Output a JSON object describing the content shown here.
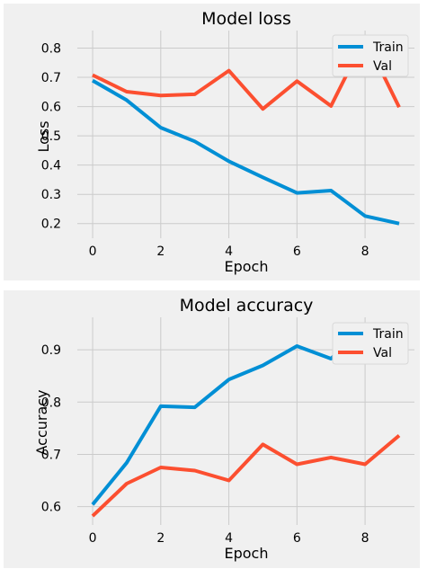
{
  "chart_data": [
    {
      "type": "line",
      "title": "Model loss",
      "xlabel": "Epoch",
      "ylabel": "Loss",
      "x": [
        0,
        1,
        2,
        3,
        4,
        5,
        6,
        7,
        8,
        9
      ],
      "xlim": [
        -0.45,
        9.45
      ],
      "ylim": [
        0.15,
        0.86
      ],
      "xticks": [
        0,
        2,
        4,
        6,
        8
      ],
      "yticks": [
        0.2,
        0.3,
        0.4,
        0.5,
        0.6,
        0.7,
        0.8
      ],
      "series": [
        {
          "name": "Train",
          "color": "#008fd5",
          "values": [
            0.689,
            0.622,
            0.528,
            0.481,
            0.413,
            0.358,
            0.305,
            0.313,
            0.226,
            0.2
          ]
        },
        {
          "name": "Val",
          "color": "#fc4f30",
          "values": [
            0.708,
            0.651,
            0.638,
            0.642,
            0.723,
            0.592,
            0.687,
            0.602,
            0.835,
            0.598
          ]
        }
      ],
      "grid": true,
      "legend": "top-right"
    },
    {
      "type": "line",
      "title": "Model accuracy",
      "xlabel": "Epoch",
      "ylabel": "Accuracy",
      "x": [
        0,
        1,
        2,
        3,
        4,
        5,
        6,
        7,
        8,
        9
      ],
      "xlim": [
        -0.45,
        9.45
      ],
      "ylim": [
        0.565,
        0.962
      ],
      "xticks": [
        0,
        2,
        4,
        6,
        8
      ],
      "yticks": [
        0.6,
        0.7,
        0.8,
        0.9
      ],
      "series": [
        {
          "name": "Train",
          "color": "#008fd5",
          "values": [
            0.604,
            0.684,
            0.792,
            0.79,
            0.843,
            0.87,
            0.907,
            0.883,
            0.946,
            0.939
          ]
        },
        {
          "name": "Val",
          "color": "#fc4f30",
          "values": [
            0.582,
            0.644,
            0.675,
            0.669,
            0.65,
            0.719,
            0.681,
            0.694,
            0.681,
            0.736
          ]
        }
      ],
      "grid": true,
      "legend": "top-right"
    }
  ]
}
